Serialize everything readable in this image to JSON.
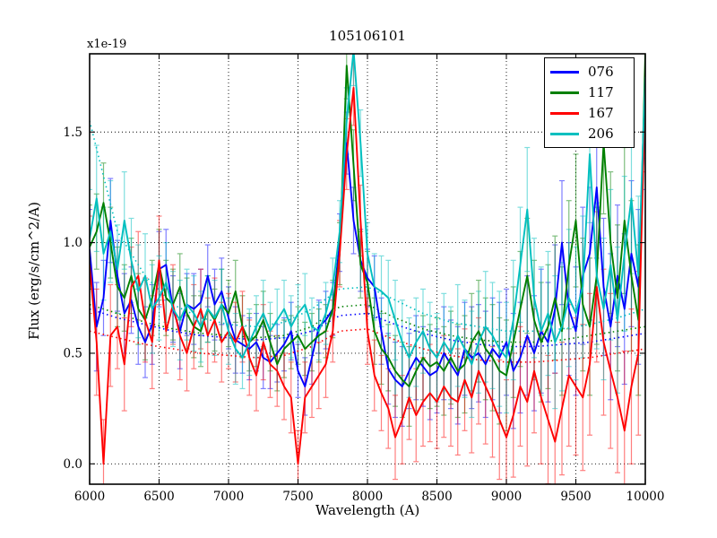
{
  "figure": {
    "title": "105106101",
    "xlabel": "Wavelength (A)",
    "ylabel": "Flux (erg/s/cm^2/A)",
    "offset_label": "x1e-19"
  },
  "chart_data": {
    "type": "line",
    "title": "105106101",
    "xlabel": "Wavelength (A)",
    "ylabel": "Flux (erg/s/cm^2/A)",
    "y_offset_label": "x1e-19",
    "xlim": [
      6000,
      10000
    ],
    "ylim": [
      -0.09,
      1.85
    ],
    "xticks": [
      6000,
      6500,
      7000,
      7500,
      8000,
      8500,
      9000,
      9500,
      10000
    ],
    "xtick_labels": [
      "6000",
      "6500",
      "7000",
      "7500",
      "8000",
      "8500",
      "9000",
      "9500",
      "10000"
    ],
    "yticks": [
      0.0,
      0.5,
      1.0,
      1.5
    ],
    "ytick_labels": [
      "0.0",
      "0.5",
      "1.0",
      "1.5"
    ],
    "grid": true,
    "legend_position": "upper right",
    "emission_peak_wavelength": 7900,
    "x": [
      6000,
      6050,
      6100,
      6150,
      6200,
      6250,
      6300,
      6350,
      6400,
      6450,
      6500,
      6550,
      6600,
      6650,
      6700,
      6750,
      6800,
      6850,
      6900,
      6950,
      7000,
      7050,
      7100,
      7150,
      7200,
      7250,
      7300,
      7350,
      7400,
      7450,
      7500,
      7550,
      7600,
      7650,
      7700,
      7750,
      7800,
      7850,
      7900,
      7950,
      8000,
      8050,
      8100,
      8150,
      8200,
      8250,
      8300,
      8350,
      8400,
      8450,
      8500,
      8550,
      8600,
      8650,
      8700,
      8750,
      8800,
      8850,
      8900,
      8950,
      9000,
      9050,
      9100,
      9150,
      9200,
      9250,
      9300,
      9350,
      9400,
      9450,
      9500,
      9550,
      9600,
      9650,
      9700,
      9750,
      9800,
      9850,
      9900,
      9950,
      10000
    ],
    "series": [
      {
        "name": "076",
        "color": "#0000ff",
        "values": [
          0.97,
          0.62,
          0.75,
          1.1,
          0.85,
          0.68,
          0.74,
          0.62,
          0.55,
          0.63,
          0.88,
          0.9,
          0.7,
          0.6,
          0.72,
          0.7,
          0.73,
          0.85,
          0.72,
          0.78,
          0.66,
          0.56,
          0.54,
          0.52,
          0.55,
          0.48,
          0.46,
          0.5,
          0.54,
          0.6,
          0.42,
          0.35,
          0.48,
          0.62,
          0.65,
          0.7,
          1.0,
          1.45,
          1.1,
          0.92,
          0.84,
          0.8,
          0.6,
          0.43,
          0.38,
          0.35,
          0.42,
          0.48,
          0.44,
          0.4,
          0.42,
          0.5,
          0.45,
          0.4,
          0.52,
          0.48,
          0.5,
          0.45,
          0.52,
          0.48,
          0.55,
          0.42,
          0.48,
          0.58,
          0.5,
          0.6,
          0.55,
          0.7,
          1.0,
          0.7,
          0.6,
          0.85,
          0.95,
          1.25,
          0.8,
          0.62,
          0.85,
          0.7,
          0.95,
          0.8,
          1.6
        ],
        "errors": [
          0.18,
          0.2,
          0.17,
          0.19,
          0.16,
          0.18,
          0.15,
          0.17,
          0.16,
          0.18,
          0.17,
          0.16,
          0.15,
          0.17,
          0.14,
          0.16,
          0.15,
          0.14,
          0.16,
          0.15,
          0.14,
          0.15,
          0.13,
          0.14,
          0.13,
          0.14,
          0.12,
          0.13,
          0.12,
          0.13,
          0.12,
          0.13,
          0.12,
          0.12,
          0.13,
          0.12,
          0.13,
          0.14,
          0.15,
          0.14,
          0.13,
          0.14,
          0.15,
          0.16,
          0.17,
          0.18,
          0.17,
          0.19,
          0.18,
          0.2,
          0.19,
          0.21,
          0.2,
          0.22,
          0.21,
          0.23,
          0.22,
          0.24,
          0.23,
          0.25,
          0.24,
          0.26,
          0.25,
          0.27,
          0.26,
          0.28,
          0.27,
          0.29,
          0.28,
          0.3,
          0.29,
          0.31,
          0.3,
          0.32,
          0.31,
          0.33,
          0.32,
          0.34,
          0.33,
          0.35,
          0.36
        ]
      },
      {
        "name": "117",
        "color": "#008000",
        "values": [
          0.98,
          1.05,
          1.18,
          1.0,
          0.8,
          0.75,
          0.85,
          0.7,
          0.65,
          0.75,
          0.9,
          0.75,
          0.72,
          0.8,
          0.68,
          0.62,
          0.6,
          0.7,
          0.65,
          0.72,
          0.68,
          0.78,
          0.62,
          0.55,
          0.58,
          0.65,
          0.55,
          0.45,
          0.52,
          0.55,
          0.58,
          0.52,
          0.55,
          0.58,
          0.6,
          0.7,
          0.95,
          1.8,
          1.35,
          0.9,
          0.82,
          0.6,
          0.52,
          0.48,
          0.42,
          0.38,
          0.35,
          0.42,
          0.48,
          0.44,
          0.46,
          0.42,
          0.48,
          0.42,
          0.45,
          0.55,
          0.6,
          0.52,
          0.48,
          0.42,
          0.4,
          0.55,
          0.7,
          0.85,
          0.65,
          0.55,
          0.62,
          0.75,
          0.6,
          0.9,
          1.1,
          0.72,
          0.62,
          0.85,
          1.45,
          1.0,
          0.75,
          1.1,
          0.85,
          0.65,
          1.85
        ],
        "errors": [
          0.19,
          0.17,
          0.18,
          0.16,
          0.18,
          0.15,
          0.17,
          0.16,
          0.18,
          0.17,
          0.16,
          0.17,
          0.16,
          0.15,
          0.16,
          0.14,
          0.16,
          0.15,
          0.14,
          0.16,
          0.15,
          0.14,
          0.14,
          0.13,
          0.14,
          0.13,
          0.13,
          0.12,
          0.13,
          0.12,
          0.13,
          0.12,
          0.13,
          0.12,
          0.12,
          0.13,
          0.14,
          0.15,
          0.16,
          0.15,
          0.14,
          0.15,
          0.16,
          0.15,
          0.16,
          0.17,
          0.18,
          0.18,
          0.19,
          0.19,
          0.2,
          0.2,
          0.21,
          0.21,
          0.22,
          0.22,
          0.23,
          0.23,
          0.24,
          0.24,
          0.25,
          0.25,
          0.26,
          0.26,
          0.27,
          0.27,
          0.28,
          0.28,
          0.29,
          0.29,
          0.3,
          0.3,
          0.31,
          0.31,
          0.32,
          0.32,
          0.33,
          0.33,
          0.34,
          0.34,
          0.35
        ]
      },
      {
        "name": "167",
        "color": "#ff0000",
        "values": [
          0.9,
          0.55,
          0.0,
          0.58,
          0.62,
          0.45,
          0.8,
          0.85,
          0.65,
          0.55,
          0.92,
          0.6,
          0.72,
          0.58,
          0.5,
          0.62,
          0.7,
          0.58,
          0.65,
          0.55,
          0.6,
          0.55,
          0.62,
          0.48,
          0.4,
          0.55,
          0.45,
          0.42,
          0.35,
          0.3,
          0.0,
          0.3,
          0.35,
          0.4,
          0.45,
          0.6,
          0.95,
          1.4,
          1.7,
          1.1,
          0.6,
          0.4,
          0.32,
          0.25,
          0.12,
          0.2,
          0.3,
          0.22,
          0.28,
          0.32,
          0.28,
          0.35,
          0.3,
          0.28,
          0.38,
          0.3,
          0.42,
          0.35,
          0.28,
          0.2,
          0.12,
          0.22,
          0.35,
          0.28,
          0.42,
          0.3,
          0.2,
          0.1,
          0.25,
          0.4,
          0.35,
          0.3,
          0.45,
          0.8,
          0.55,
          0.42,
          0.3,
          0.15,
          0.35,
          0.5,
          1.7
        ],
        "errors": [
          0.22,
          0.24,
          0.2,
          0.23,
          0.19,
          0.21,
          0.18,
          0.2,
          0.19,
          0.21,
          0.2,
          0.19,
          0.18,
          0.2,
          0.17,
          0.19,
          0.18,
          0.17,
          0.19,
          0.18,
          0.17,
          0.18,
          0.16,
          0.17,
          0.16,
          0.17,
          0.15,
          0.16,
          0.15,
          0.16,
          0.15,
          0.16,
          0.14,
          0.15,
          0.15,
          0.14,
          0.15,
          0.16,
          0.17,
          0.16,
          0.15,
          0.16,
          0.17,
          0.18,
          0.19,
          0.2,
          0.19,
          0.21,
          0.2,
          0.22,
          0.21,
          0.23,
          0.22,
          0.24,
          0.23,
          0.25,
          0.24,
          0.26,
          0.25,
          0.27,
          0.26,
          0.28,
          0.27,
          0.29,
          0.28,
          0.3,
          0.29,
          0.31,
          0.3,
          0.32,
          0.31,
          0.33,
          0.32,
          0.34,
          0.33,
          0.35,
          0.34,
          0.36,
          0.35,
          0.37,
          0.38
        ]
      },
      {
        "name": "206",
        "color": "#00bfbf",
        "values": [
          1.02,
          1.2,
          0.95,
          1.05,
          0.88,
          1.1,
          0.92,
          0.78,
          0.85,
          0.7,
          0.75,
          0.82,
          0.7,
          0.65,
          0.72,
          0.68,
          0.62,
          0.7,
          0.66,
          0.72,
          0.6,
          0.52,
          0.48,
          0.55,
          0.62,
          0.68,
          0.6,
          0.65,
          0.7,
          0.62,
          0.68,
          0.72,
          0.62,
          0.6,
          0.68,
          0.8,
          1.05,
          1.55,
          1.87,
          1.45,
          0.95,
          0.8,
          0.78,
          0.75,
          0.65,
          0.55,
          0.48,
          0.55,
          0.6,
          0.52,
          0.48,
          0.55,
          0.5,
          0.58,
          0.52,
          0.45,
          0.55,
          0.62,
          0.58,
          0.52,
          0.48,
          0.65,
          0.9,
          1.15,
          0.75,
          0.6,
          0.68,
          0.55,
          0.62,
          0.75,
          0.68,
          0.8,
          1.4,
          0.85,
          0.7,
          0.9,
          0.65,
          0.95,
          1.2,
          0.85,
          1.75
        ],
        "errors": [
          0.22,
          0.24,
          0.21,
          0.23,
          0.2,
          0.22,
          0.19,
          0.21,
          0.19,
          0.2,
          0.19,
          0.18,
          0.17,
          0.18,
          0.16,
          0.17,
          0.16,
          0.15,
          0.17,
          0.16,
          0.15,
          0.16,
          0.14,
          0.15,
          0.14,
          0.15,
          0.13,
          0.14,
          0.13,
          0.14,
          0.13,
          0.14,
          0.13,
          0.13,
          0.14,
          0.13,
          0.14,
          0.15,
          0.16,
          0.15,
          0.14,
          0.15,
          0.16,
          0.17,
          0.18,
          0.19,
          0.18,
          0.2,
          0.19,
          0.21,
          0.2,
          0.22,
          0.21,
          0.23,
          0.22,
          0.24,
          0.23,
          0.25,
          0.24,
          0.26,
          0.25,
          0.27,
          0.26,
          0.28,
          0.27,
          0.29,
          0.28,
          0.3,
          0.29,
          0.31,
          0.3,
          0.32,
          0.31,
          0.33,
          0.32,
          0.34,
          0.33,
          0.35,
          0.34,
          0.36,
          0.37
        ]
      }
    ],
    "model_curves": {
      "style": "dotted",
      "x_start": 6000,
      "x_step": 200,
      "curves": [
        {
          "name": "076-model",
          "color": "#0000ff",
          "values": [
            0.7,
            0.66,
            0.63,
            0.6,
            0.58,
            0.57,
            0.56,
            0.57,
            0.6,
            0.67,
            0.68,
            0.63,
            0.59,
            0.56,
            0.54,
            0.53,
            0.53,
            0.54,
            0.55,
            0.57,
            0.59
          ]
        },
        {
          "name": "117-model",
          "color": "#008000",
          "values": [
            0.72,
            0.68,
            0.64,
            0.61,
            0.59,
            0.58,
            0.57,
            0.58,
            0.62,
            0.71,
            0.72,
            0.66,
            0.61,
            0.58,
            0.56,
            0.55,
            0.55,
            0.56,
            0.58,
            0.6,
            0.62
          ]
        },
        {
          "name": "167-model",
          "color": "#ff0000",
          "values": [
            0.6,
            0.57,
            0.54,
            0.52,
            0.5,
            0.49,
            0.48,
            0.49,
            0.53,
            0.6,
            0.61,
            0.56,
            0.52,
            0.49,
            0.47,
            0.46,
            0.46,
            0.47,
            0.48,
            0.5,
            0.52
          ]
        },
        {
          "name": "206-model",
          "color": "#00bfbf",
          "values": [
            1.55,
            1.05,
            0.85,
            0.72,
            0.66,
            0.63,
            0.62,
            0.64,
            0.7,
            0.79,
            0.8,
            0.74,
            0.68,
            0.64,
            0.62,
            0.6,
            0.6,
            0.61,
            0.63,
            0.66,
            0.7
          ]
        }
      ]
    },
    "legend": {
      "entries": [
        {
          "label": "076",
          "color": "#0000ff"
        },
        {
          "label": "117",
          "color": "#008000"
        },
        {
          "label": "167",
          "color": "#ff0000"
        },
        {
          "label": "206",
          "color": "#00bfbf"
        }
      ]
    },
    "colors": {
      "axes": "#000000",
      "grid": "#000000",
      "background": "#ffffff"
    }
  }
}
